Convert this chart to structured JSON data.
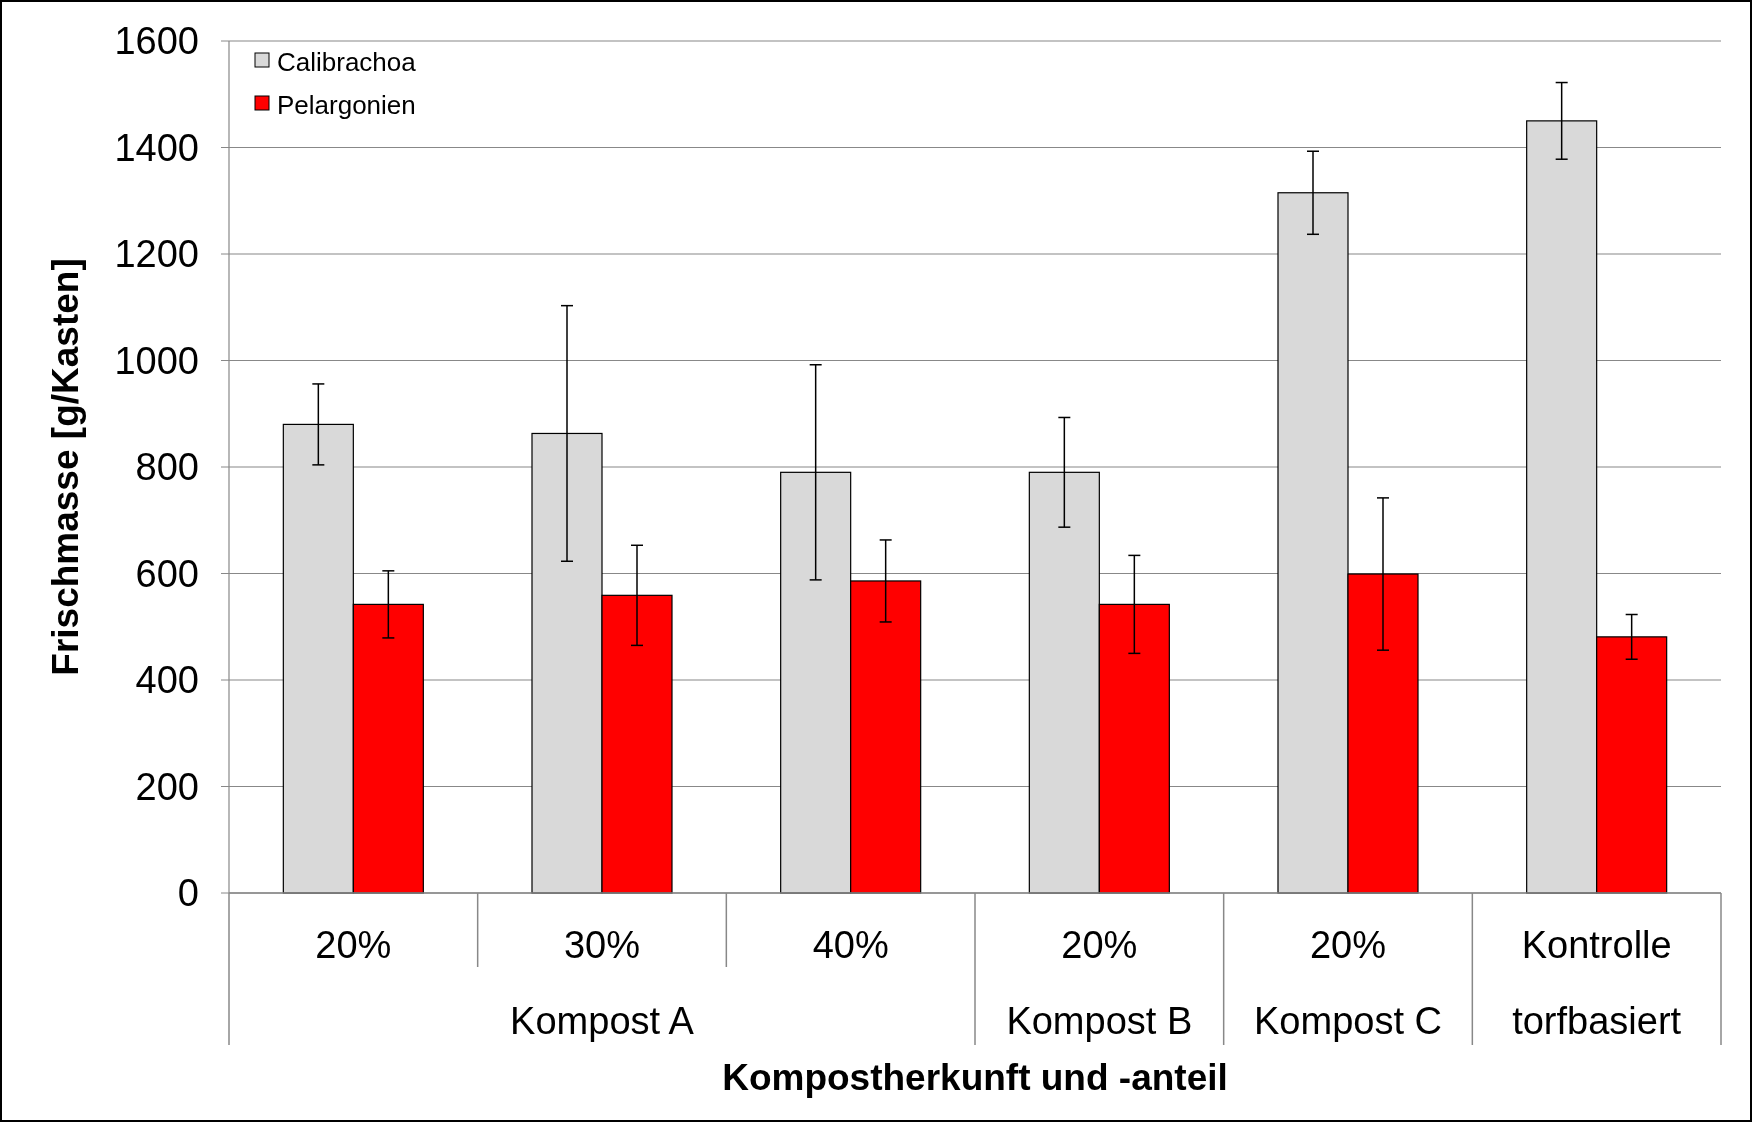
{
  "chart_data": {
    "type": "bar",
    "xlabel": "Kompostherkunft und -anteil",
    "ylabel": "Frischmasse [g/Kasten]",
    "categories": [
      "20%",
      "30%",
      "40%",
      "20%",
      "20%",
      "Kontrolle"
    ],
    "annotations": [
      "Kompost A",
      "Kompost B",
      "Kompost C",
      "torfbasiert"
    ],
    "series": [
      {
        "name": "Calibrachoa",
        "color": "#d9d9d9",
        "values": [
          880,
          863,
          790,
          790,
          1315,
          1450
        ],
        "errors": [
          76,
          240,
          202,
          103,
          78,
          72
        ]
      },
      {
        "name": "Pelargonien",
        "color": "#ff0000",
        "values": [
          542,
          559,
          586,
          542,
          599,
          481
        ],
        "errors": [
          63,
          94,
          77,
          92,
          143,
          42
        ]
      }
    ],
    "ylim": [
      0,
      1600
    ],
    "yticks": [
      0,
      200,
      400,
      600,
      800,
      1000,
      1200,
      1400,
      1600
    ],
    "grid": "y",
    "legend": "top left"
  }
}
